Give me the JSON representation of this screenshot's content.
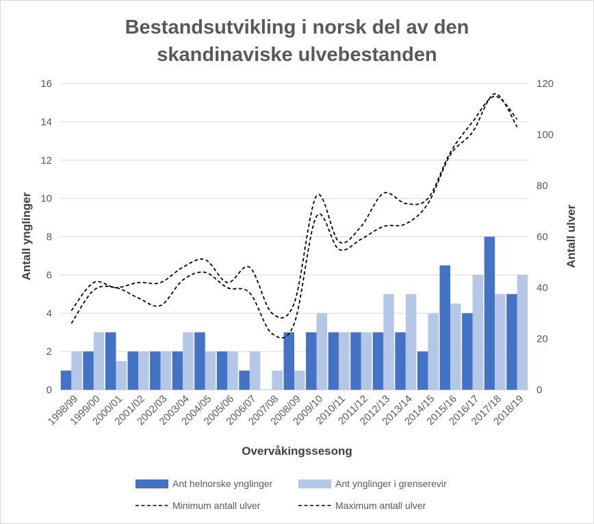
{
  "chart_data": {
    "type": "bar",
    "title_lines": [
      "Bestandsutvikling i norsk del av den",
      "skandinaviske ulvebestanden"
    ],
    "xlabel": "Overvåkingssesong",
    "ylabel": "Antall ynglinger",
    "y2label": "Antall ulver",
    "ylim": [
      0,
      16
    ],
    "y2lim": [
      0,
      120
    ],
    "yticks": [
      "0",
      "2",
      "4",
      "6",
      "8",
      "10",
      "12",
      "14",
      "16"
    ],
    "y2ticks": [
      "0",
      "20",
      "40",
      "60",
      "80",
      "100",
      "120"
    ],
    "grid": true,
    "legend_position": "bottom",
    "categories": [
      "1998/99",
      "1999/00",
      "2000/01",
      "2001/02",
      "2002/03",
      "2003/04",
      "2004/05",
      "2005/06",
      "2006/07",
      "2007/08",
      "2008/09",
      "2009/10",
      "2010/11",
      "2011/12",
      "2012/13",
      "2013/14",
      "2014/15",
      "2015/16",
      "2016/17",
      "2017/18",
      "2018/19"
    ],
    "bar_series": [
      {
        "name": "Ant helnorske ynglinger",
        "color": "#4472c4",
        "values": [
          1,
          2,
          3,
          2,
          2,
          2,
          3,
          2,
          1,
          0,
          3,
          3,
          3,
          3,
          3,
          3,
          2,
          6.5,
          4,
          8,
          5
        ]
      },
      {
        "name": "Ant ynglinger i grenserevir",
        "color": "#b4c7e7",
        "values": [
          2,
          3,
          1.5,
          2,
          2,
          3,
          2,
          2,
          2,
          1,
          1,
          4,
          3,
          3,
          5,
          5,
          4,
          4.5,
          6,
          5,
          6
        ]
      }
    ],
    "line_series": [
      {
        "name": "Minimum antall ulver",
        "axis": "right",
        "color": "#000000",
        "values": [
          26,
          39,
          40,
          36,
          33,
          43,
          46,
          40,
          38,
          22,
          26,
          68,
          55,
          59,
          64,
          65,
          73,
          92,
          101,
          116,
          103
        ]
      },
      {
        "name": "Maximum antall ulver",
        "axis": "right",
        "color": "#000000",
        "values": [
          31,
          42,
          40,
          42,
          42,
          48,
          51,
          42,
          48,
          30,
          34,
          76,
          58,
          64,
          77,
          73,
          75,
          93,
          105,
          115,
          106
        ]
      }
    ]
  }
}
